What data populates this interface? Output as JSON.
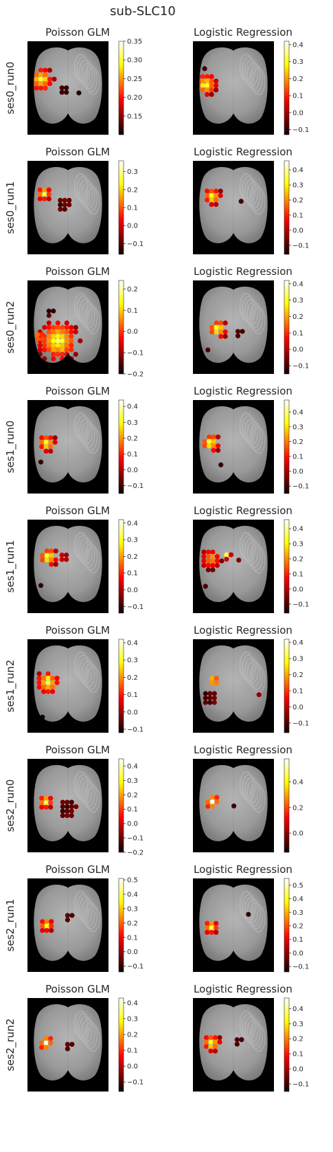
{
  "figure": {
    "title": "sub-SLC10",
    "colormap": "hot",
    "panel_background": "#000000",
    "brain_shading": "gray"
  },
  "chart_data": [
    {
      "type": "heatmap",
      "row_label": "ses0_run0",
      "title": "Poisson GLM",
      "clim": [
        0.1,
        0.35
      ],
      "colorbar_ticks": [
        0.15,
        0.2,
        0.25,
        0.3,
        0.35
      ],
      "colorbar_tick_labels": [
        "0.15",
        "0.20",
        "0.25",
        "0.30",
        "0.35"
      ],
      "blobs": [
        {
          "x": 0.17,
          "y": 0.31,
          "r": 0.17,
          "v": 0.33
        },
        {
          "x": 0.45,
          "y": 0.42,
          "r": 0.08,
          "v": 0.13
        },
        {
          "x": 0.62,
          "y": 0.44,
          "r": 0.04,
          "v": 0.12
        }
      ]
    },
    {
      "type": "heatmap",
      "row_label": "ses0_run0",
      "title": "Logistic Regression",
      "clim": [
        -0.13,
        0.42
      ],
      "colorbar_ticks": [
        -0.1,
        0.0,
        0.1,
        0.2,
        0.3,
        0.4
      ],
      "colorbar_tick_labels": [
        "−0.1",
        "0.0",
        "0.1",
        "0.2",
        "0.3",
        "0.4"
      ],
      "blobs": [
        {
          "x": 0.16,
          "y": 0.36,
          "r": 0.15,
          "v": 0.4
        },
        {
          "x": 0.13,
          "y": 0.18,
          "r": 0.04,
          "v": -0.1
        }
      ]
    },
    {
      "type": "heatmap",
      "row_label": "ses0_run1",
      "title": "Poisson GLM",
      "clim": [
        -0.16,
        0.36
      ],
      "colorbar_ticks": [
        -0.1,
        0.0,
        0.1,
        0.2,
        0.3
      ],
      "colorbar_tick_labels": [
        "−0.1",
        "0.0",
        "0.1",
        "0.2",
        "0.3"
      ],
      "blobs": [
        {
          "x": 0.2,
          "y": 0.25,
          "r": 0.1,
          "v": 0.34
        },
        {
          "x": 0.46,
          "y": 0.37,
          "r": 0.11,
          "v": -0.12
        }
      ]
    },
    {
      "type": "heatmap",
      "row_label": "ses0_run1",
      "title": "Logistic Regression",
      "clim": [
        -0.16,
        0.46
      ],
      "colorbar_ticks": [
        -0.1,
        0.0,
        0.1,
        0.2,
        0.3,
        0.4
      ],
      "colorbar_tick_labels": [
        "−0.1",
        "0.0",
        "0.1",
        "0.2",
        "0.3",
        "0.4"
      ],
      "blobs": [
        {
          "x": 0.24,
          "y": 0.28,
          "r": 0.12,
          "v": 0.44
        },
        {
          "x": 0.58,
          "y": 0.32,
          "r": 0.04,
          "v": -0.12
        }
      ]
    },
    {
      "type": "heatmap",
      "row_label": "ses0_run2",
      "title": "Poisson GLM",
      "clim": [
        -0.2,
        0.24
      ],
      "colorbar_ticks": [
        -0.2,
        -0.1,
        0.0,
        0.1,
        0.2
      ],
      "colorbar_tick_labels": [
        "−0.2",
        "−0.1",
        "0.0",
        "0.1",
        "0.2"
      ],
      "blobs": [
        {
          "x": 0.38,
          "y": 0.55,
          "r": 0.28,
          "v": 0.22
        },
        {
          "x": 0.15,
          "y": 0.5,
          "r": 0.08,
          "v": 0.16
        },
        {
          "x": 0.28,
          "y": 0.24,
          "r": 0.07,
          "v": -0.18
        }
      ]
    },
    {
      "type": "heatmap",
      "row_label": "ses0_run2",
      "title": "Logistic Regression",
      "clim": [
        -0.15,
        0.42
      ],
      "colorbar_ticks": [
        -0.1,
        0.0,
        0.1,
        0.2,
        0.3,
        0.4
      ],
      "colorbar_tick_labels": [
        "−0.1",
        "0.0",
        "0.1",
        "0.2",
        "0.3",
        "0.4"
      ],
      "blobs": [
        {
          "x": 0.31,
          "y": 0.42,
          "r": 0.13,
          "v": 0.4
        },
        {
          "x": 0.56,
          "y": 0.45,
          "r": 0.06,
          "v": -0.12
        },
        {
          "x": 0.17,
          "y": 0.63,
          "r": 0.04,
          "v": -0.1
        }
      ]
    },
    {
      "type": "heatmap",
      "row_label": "ses1_run0",
      "title": "Poisson GLM",
      "clim": [
        -0.15,
        0.44
      ],
      "colorbar_ticks": [
        -0.1,
        0.0,
        0.1,
        0.2,
        0.3,
        0.4
      ],
      "colorbar_tick_labels": [
        "−0.1",
        "0.0",
        "0.1",
        "0.2",
        "0.3",
        "0.4"
      ],
      "blobs": [
        {
          "x": 0.24,
          "y": 0.36,
          "r": 0.12,
          "v": 0.42
        },
        {
          "x": 0.15,
          "y": 0.55,
          "r": 0.04,
          "v": -0.12
        },
        {
          "x": 0.44,
          "y": 0.55,
          "r": 0.03,
          "v": -0.1
        }
      ]
    },
    {
      "type": "heatmap",
      "row_label": "ses1_run0",
      "title": "Logistic Regression",
      "clim": [
        -0.15,
        0.48
      ],
      "colorbar_ticks": [
        -0.1,
        0.0,
        0.1,
        0.2,
        0.3,
        0.4
      ],
      "colorbar_tick_labels": [
        "−0.1",
        "0.0",
        "0.1",
        "0.2",
        "0.3",
        "0.4"
      ],
      "blobs": [
        {
          "x": 0.22,
          "y": 0.36,
          "r": 0.13,
          "v": 0.46
        },
        {
          "x": 0.33,
          "y": 0.58,
          "r": 0.04,
          "v": -0.12
        }
      ]
    },
    {
      "type": "heatmap",
      "row_label": "ses1_run1",
      "title": "Poisson GLM",
      "clim": [
        -0.14,
        0.42
      ],
      "colorbar_ticks": [
        -0.1,
        0.0,
        0.1,
        0.2,
        0.3,
        0.4
      ],
      "colorbar_tick_labels": [
        "−0.1",
        "0.0",
        "0.1",
        "0.2",
        "0.3",
        "0.4"
      ],
      "blobs": [
        {
          "x": 0.26,
          "y": 0.3,
          "r": 0.13,
          "v": 0.4
        },
        {
          "x": 0.45,
          "y": 0.3,
          "r": 0.08,
          "v": 0.1
        },
        {
          "x": 0.16,
          "y": 0.6,
          "r": 0.05,
          "v": -0.12
        }
      ]
    },
    {
      "type": "heatmap",
      "row_label": "ses1_run1",
      "title": "Logistic Regression",
      "clim": [
        -0.16,
        0.46
      ],
      "colorbar_ticks": [
        -0.1,
        0.0,
        0.1,
        0.2,
        0.3,
        0.4
      ],
      "colorbar_tick_labels": [
        "−0.1",
        "0.0",
        "0.1",
        "0.2",
        "0.3",
        "0.4"
      ],
      "blobs": [
        {
          "x": 0.22,
          "y": 0.32,
          "r": 0.14,
          "v": 0.3
        },
        {
          "x": 0.42,
          "y": 0.28,
          "r": 0.06,
          "v": 0.42
        },
        {
          "x": 0.55,
          "y": 0.32,
          "r": 0.04,
          "v": 0.05
        },
        {
          "x": 0.14,
          "y": 0.6,
          "r": 0.04,
          "v": -0.12
        }
      ]
    },
    {
      "type": "heatmap",
      "row_label": "ses1_run2",
      "title": "Poisson GLM",
      "clim": [
        -0.12,
        0.42
      ],
      "colorbar_ticks": [
        -0.1,
        0.0,
        0.1,
        0.2,
        0.3,
        0.4
      ],
      "colorbar_tick_labels": [
        "−0.1",
        "0.0",
        "0.1",
        "0.2",
        "0.3",
        "0.4"
      ],
      "blobs": [
        {
          "x": 0.25,
          "y": 0.36,
          "r": 0.16,
          "v": 0.4
        },
        {
          "x": 0.17,
          "y": 0.72,
          "r": 0.04,
          "v": -0.12
        }
      ]
    },
    {
      "type": "heatmap",
      "row_label": "ses1_run2",
      "title": "Logistic Regression",
      "clim": [
        -0.16,
        0.42
      ],
      "colorbar_ticks": [
        -0.1,
        0.0,
        0.1,
        0.2,
        0.3,
        0.4
      ],
      "colorbar_tick_labels": [
        "−0.1",
        "0.0",
        "0.1",
        "0.2",
        "0.3",
        "0.4"
      ],
      "blobs": [
        {
          "x": 0.2,
          "y": 0.52,
          "r": 0.1,
          "v": -0.12
        },
        {
          "x": 0.26,
          "y": 0.34,
          "r": 0.08,
          "v": 0.4
        },
        {
          "x": 0.8,
          "y": 0.48,
          "r": 0.04,
          "v": -0.05
        }
      ]
    },
    {
      "type": "heatmap",
      "row_label": "ses2_run0",
      "title": "Poisson GLM",
      "clim": [
        -0.2,
        0.45
      ],
      "colorbar_ticks": [
        -0.2,
        -0.1,
        0.0,
        0.1,
        0.2,
        0.3,
        0.4
      ],
      "colorbar_tick_labels": [
        "−0.2",
        "−0.1",
        "0.0",
        "0.1",
        "0.2",
        "0.3",
        "0.4"
      ],
      "blobs": [
        {
          "x": 0.22,
          "y": 0.36,
          "r": 0.1,
          "v": 0.43
        },
        {
          "x": 0.5,
          "y": 0.42,
          "r": 0.12,
          "v": -0.15
        }
      ]
    },
    {
      "type": "heatmap",
      "row_label": "ses2_run0",
      "title": "Logistic Regression",
      "clim": [
        -0.15,
        0.58
      ],
      "colorbar_ticks": [
        0.0,
        0.2,
        0.4
      ],
      "colorbar_tick_labels": [
        "0.0",
        "0.2",
        "0.4"
      ],
      "blobs": [
        {
          "x": 0.24,
          "y": 0.36,
          "r": 0.11,
          "v": 0.56
        },
        {
          "x": 0.5,
          "y": 0.4,
          "r": 0.05,
          "v": -0.1
        }
      ]
    },
    {
      "type": "heatmap",
      "row_label": "ses2_run1",
      "title": "Poisson GLM",
      "clim": [
        -0.14,
        0.51
      ],
      "colorbar_ticks": [
        -0.1,
        0.0,
        0.1,
        0.2,
        0.3,
        0.4,
        0.5
      ],
      "colorbar_tick_labels": [
        "−0.1",
        "0.0",
        "0.1",
        "0.2",
        "0.3",
        "0.4",
        "0.5"
      ],
      "blobs": [
        {
          "x": 0.23,
          "y": 0.4,
          "r": 0.1,
          "v": 0.45
        },
        {
          "x": 0.5,
          "y": 0.3,
          "r": 0.06,
          "v": -0.1
        }
      ]
    },
    {
      "type": "heatmap",
      "row_label": "ses2_run1",
      "title": "Logistic Regression",
      "clim": [
        -0.14,
        0.55
      ],
      "colorbar_ticks": [
        -0.1,
        0.0,
        0.1,
        0.2,
        0.3,
        0.4,
        0.5
      ],
      "colorbar_tick_labels": [
        "−0.1",
        "0.0",
        "0.1",
        "0.2",
        "0.3",
        "0.4",
        "0.5"
      ],
      "blobs": [
        {
          "x": 0.22,
          "y": 0.42,
          "r": 0.1,
          "v": 0.52
        },
        {
          "x": 0.68,
          "y": 0.28,
          "r": 0.05,
          "v": -0.1
        }
      ]
    },
    {
      "type": "heatmap",
      "row_label": "ses2_run2",
      "title": "Poisson GLM",
      "clim": [
        -0.16,
        0.43
      ],
      "colorbar_ticks": [
        -0.1,
        0.0,
        0.1,
        0.2,
        0.3,
        0.4
      ],
      "colorbar_tick_labels": [
        "−0.1",
        "0.0",
        "0.1",
        "0.2",
        "0.3",
        "0.4"
      ],
      "blobs": [
        {
          "x": 0.23,
          "y": 0.38,
          "r": 0.11,
          "v": 0.41
        },
        {
          "x": 0.5,
          "y": 0.4,
          "r": 0.06,
          "v": -0.12
        }
      ]
    },
    {
      "type": "heatmap",
      "row_label": "ses2_run2",
      "title": "Logistic Regression",
      "clim": [
        -0.15,
        0.47
      ],
      "colorbar_ticks": [
        -0.1,
        0.0,
        0.1,
        0.2,
        0.3,
        0.4
      ],
      "colorbar_tick_labels": [
        "−0.1",
        "0.0",
        "0.1",
        "0.2",
        "0.3",
        "0.4"
      ],
      "blobs": [
        {
          "x": 0.23,
          "y": 0.38,
          "r": 0.12,
          "v": 0.45
        },
        {
          "x": 0.55,
          "y": 0.35,
          "r": 0.06,
          "v": -0.12
        }
      ]
    }
  ]
}
